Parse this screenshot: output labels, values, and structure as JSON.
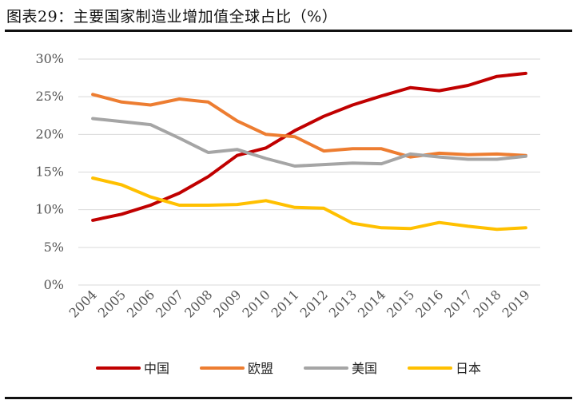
{
  "page": {
    "title": "图表29：主要国家制造业增加值全球占比（%）"
  },
  "chart_data": {
    "type": "line",
    "title": "主要国家制造业增加值全球占比（%）",
    "x": [
      "2004",
      "2005",
      "2006",
      "2007",
      "2008",
      "2009",
      "2010",
      "2011",
      "2012",
      "2013",
      "2014",
      "2015",
      "2016",
      "2017",
      "2018",
      "2019"
    ],
    "ylim": [
      0,
      30
    ],
    "yticks": [
      0,
      5,
      10,
      15,
      20,
      25,
      30
    ],
    "ytick_labels": [
      "0%",
      "5%",
      "10%",
      "15%",
      "20%",
      "25%",
      "30%"
    ],
    "grid": true,
    "legend_position": "bottom",
    "series": [
      {
        "name": "中国",
        "color": "#C00000",
        "values": [
          8.6,
          9.4,
          10.6,
          12.2,
          14.4,
          17.2,
          18.2,
          20.5,
          22.4,
          23.9,
          25.1,
          26.2,
          25.8,
          26.5,
          27.7,
          28.1
        ]
      },
      {
        "name": "欧盟",
        "color": "#ED7D31",
        "values": [
          25.3,
          24.3,
          23.9,
          24.7,
          24.3,
          21.8,
          20.0,
          19.7,
          17.8,
          18.1,
          18.1,
          17.0,
          17.5,
          17.3,
          17.4,
          17.2
        ]
      },
      {
        "name": "美国",
        "color": "#A5A5A5",
        "values": [
          22.1,
          21.7,
          21.3,
          19.5,
          17.6,
          18.0,
          16.8,
          15.8,
          16.0,
          16.2,
          16.1,
          17.4,
          17.0,
          16.7,
          16.7,
          17.1
        ]
      },
      {
        "name": "日本",
        "color": "#FFC000",
        "values": [
          14.2,
          13.3,
          11.7,
          10.6,
          10.6,
          10.7,
          11.2,
          10.3,
          10.2,
          8.2,
          7.6,
          7.5,
          8.3,
          7.8,
          7.4,
          7.6
        ]
      }
    ]
  }
}
